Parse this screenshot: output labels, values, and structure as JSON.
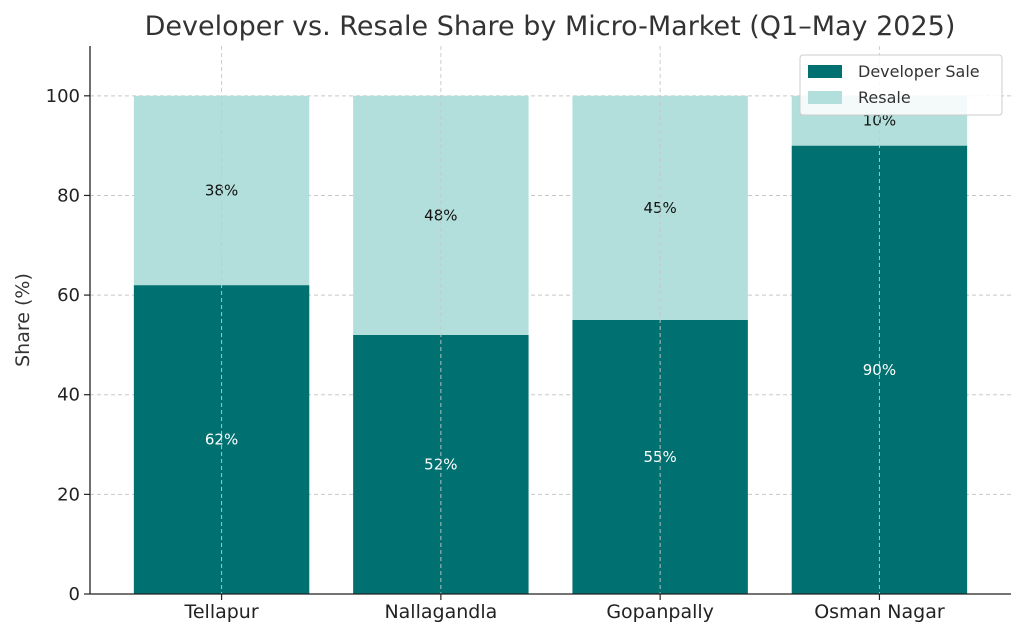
{
  "chart_data": {
    "type": "bar",
    "stacked": true,
    "title": "Developer vs. Resale Share by Micro-Market (Q1–May 2025)",
    "xlabel": "",
    "ylabel": "Share (%)",
    "ylim": [
      0,
      110
    ],
    "yticks": [
      0,
      20,
      40,
      60,
      80,
      100
    ],
    "grid": true,
    "legend_position": "top-right",
    "categories": [
      "Tellapur",
      "Nallagandla",
      "Gopanpally",
      "Osman Nagar"
    ],
    "series": [
      {
        "name": "Developer Sale",
        "color": "#007070",
        "label_color": "#ffffff",
        "values": [
          62,
          52,
          55,
          90
        ],
        "labels": [
          "62%",
          "52%",
          "55%",
          "90%"
        ]
      },
      {
        "name": "Resale",
        "color": "#b2dfdb",
        "label_color": "#111111",
        "values": [
          38,
          48,
          45,
          10
        ],
        "labels": [
          "38%",
          "48%",
          "45%",
          "10%"
        ]
      }
    ]
  }
}
